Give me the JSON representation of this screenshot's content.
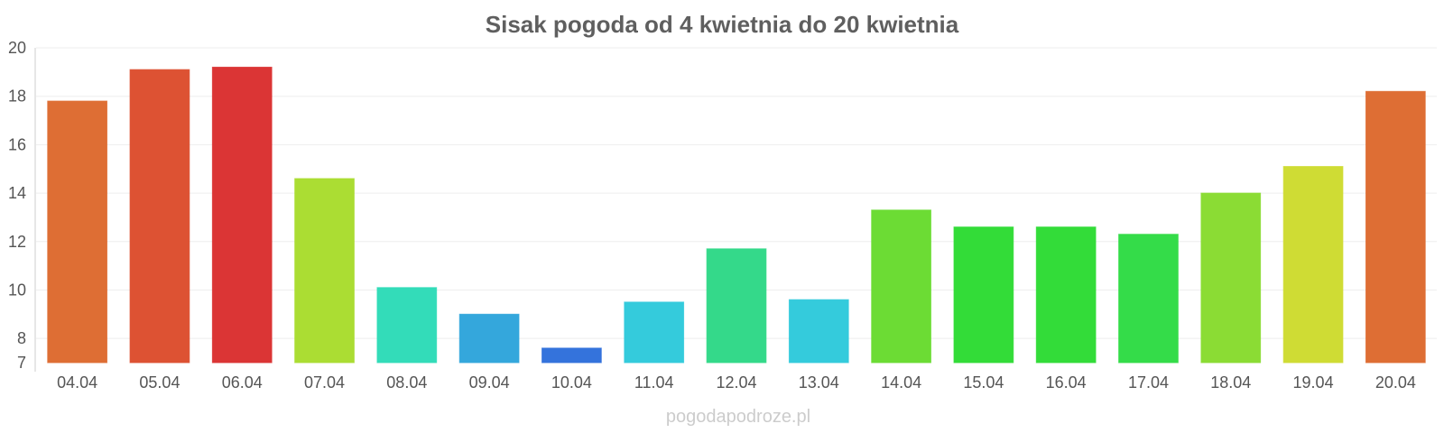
{
  "chart_data": {
    "type": "bar",
    "title": "Sisak pogoda od 4 kwietnia do 20 kwietnia",
    "xlabel": "",
    "ylabel": "",
    "ylim": [
      7,
      20
    ],
    "yticks": [
      7,
      8,
      10,
      12,
      14,
      16,
      18,
      20
    ],
    "grid": true,
    "categories": [
      "04.04",
      "05.04",
      "06.04",
      "07.04",
      "08.04",
      "09.04",
      "10.04",
      "11.04",
      "12.04",
      "13.04",
      "14.04",
      "15.04",
      "16.04",
      "17.04",
      "18.04",
      "19.04",
      "20.04"
    ],
    "values": [
      17.8,
      19.1,
      19.2,
      14.6,
      10.1,
      9.0,
      7.6,
      9.5,
      11.7,
      9.6,
      13.3,
      12.6,
      12.6,
      12.3,
      14.0,
      15.1,
      18.2
    ],
    "colors": [
      "#de6e34",
      "#dd5233",
      "#db3535",
      "#abdd33",
      "#33dcb9",
      "#34a7dc",
      "#3473dc",
      "#34cbdc",
      "#34d98a",
      "#34cbdc",
      "#6cdc34",
      "#33dc38",
      "#33dc39",
      "#34dc49",
      "#8bdc34",
      "#cfdc34",
      "#de6e34"
    ],
    "watermark": "pogodapodroze.pl"
  }
}
